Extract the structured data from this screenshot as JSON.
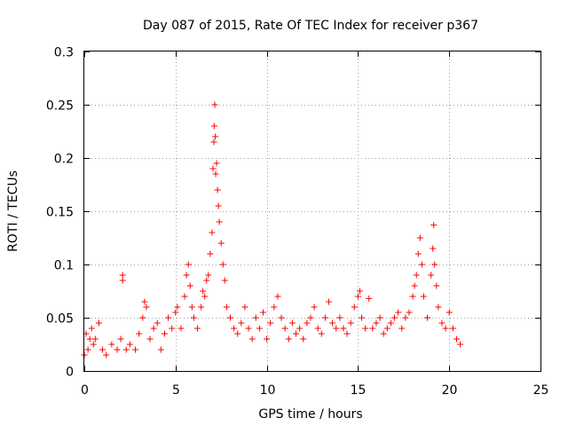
{
  "chart_data": {
    "type": "scatter",
    "title": "Day 087 of 2015, Rate Of TEC Index for receiver p367",
    "xlabel": "GPS time / hours",
    "ylabel": "ROTI / TECUs",
    "xlim": [
      0,
      25
    ],
    "ylim": [
      0,
      0.3
    ],
    "grid": true,
    "marker": "+",
    "color": "#ff0000",
    "x_ticks": [
      {
        "value": 0,
        "label": "0"
      },
      {
        "value": 5,
        "label": "5"
      },
      {
        "value": 10,
        "label": "10"
      },
      {
        "value": 15,
        "label": "15"
      },
      {
        "value": 20,
        "label": "20"
      },
      {
        "value": 25,
        "label": "25"
      }
    ],
    "y_ticks": [
      {
        "value": 0,
        "label": "0"
      },
      {
        "value": 0.05,
        "label": "0.05"
      },
      {
        "value": 0.1,
        "label": "0.1"
      },
      {
        "value": 0.15,
        "label": "0.15"
      },
      {
        "value": 0.2,
        "label": "0.2"
      },
      {
        "value": 0.25,
        "label": "0.25"
      },
      {
        "value": 0.3,
        "label": "0.3"
      }
    ],
    "series": [
      {
        "name": "ROTI",
        "points": [
          [
            0.0,
            0.015
          ],
          [
            0.1,
            0.035
          ],
          [
            0.2,
            0.02
          ],
          [
            0.3,
            0.03
          ],
          [
            0.4,
            0.04
          ],
          [
            0.5,
            0.025
          ],
          [
            0.6,
            0.03
          ],
          [
            0.8,
            0.045
          ],
          [
            1.0,
            0.02
          ],
          [
            1.2,
            0.015
          ],
          [
            1.5,
            0.025
          ],
          [
            1.8,
            0.02
          ],
          [
            2.0,
            0.03
          ],
          [
            2.1,
            0.09
          ],
          [
            2.1,
            0.085
          ],
          [
            2.3,
            0.02
          ],
          [
            2.5,
            0.025
          ],
          [
            2.8,
            0.02
          ],
          [
            3.0,
            0.035
          ],
          [
            3.2,
            0.05
          ],
          [
            3.3,
            0.065
          ],
          [
            3.4,
            0.06
          ],
          [
            3.6,
            0.03
          ],
          [
            3.8,
            0.04
          ],
          [
            4.0,
            0.045
          ],
          [
            4.2,
            0.02
          ],
          [
            4.4,
            0.035
          ],
          [
            4.6,
            0.05
          ],
          [
            4.8,
            0.04
          ],
          [
            5.0,
            0.055
          ],
          [
            5.1,
            0.06
          ],
          [
            5.3,
            0.04
          ],
          [
            5.5,
            0.07
          ],
          [
            5.6,
            0.09
          ],
          [
            5.7,
            0.1
          ],
          [
            5.8,
            0.08
          ],
          [
            5.9,
            0.06
          ],
          [
            6.0,
            0.05
          ],
          [
            6.2,
            0.04
          ],
          [
            6.4,
            0.06
          ],
          [
            6.5,
            0.075
          ],
          [
            6.6,
            0.07
          ],
          [
            6.7,
            0.085
          ],
          [
            6.8,
            0.09
          ],
          [
            6.9,
            0.11
          ],
          [
            7.0,
            0.13
          ],
          [
            7.05,
            0.19
          ],
          [
            7.1,
            0.215
          ],
          [
            7.12,
            0.23
          ],
          [
            7.15,
            0.25
          ],
          [
            7.18,
            0.22
          ],
          [
            7.2,
            0.185
          ],
          [
            7.25,
            0.195
          ],
          [
            7.3,
            0.17
          ],
          [
            7.35,
            0.155
          ],
          [
            7.4,
            0.14
          ],
          [
            7.5,
            0.12
          ],
          [
            7.6,
            0.1
          ],
          [
            7.7,
            0.085
          ],
          [
            7.8,
            0.06
          ],
          [
            8.0,
            0.05
          ],
          [
            8.2,
            0.04
          ],
          [
            8.4,
            0.035
          ],
          [
            8.6,
            0.045
          ],
          [
            8.8,
            0.06
          ],
          [
            9.0,
            0.04
          ],
          [
            9.2,
            0.03
          ],
          [
            9.4,
            0.05
          ],
          [
            9.6,
            0.04
          ],
          [
            9.8,
            0.055
          ],
          [
            10.0,
            0.03
          ],
          [
            10.2,
            0.045
          ],
          [
            10.4,
            0.06
          ],
          [
            10.6,
            0.07
          ],
          [
            10.8,
            0.05
          ],
          [
            11.0,
            0.04
          ],
          [
            11.2,
            0.03
          ],
          [
            11.4,
            0.045
          ],
          [
            11.6,
            0.035
          ],
          [
            11.8,
            0.04
          ],
          [
            12.0,
            0.03
          ],
          [
            12.2,
            0.045
          ],
          [
            12.4,
            0.05
          ],
          [
            12.6,
            0.06
          ],
          [
            12.8,
            0.04
          ],
          [
            13.0,
            0.035
          ],
          [
            13.2,
            0.05
          ],
          [
            13.4,
            0.065
          ],
          [
            13.6,
            0.045
          ],
          [
            13.8,
            0.04
          ],
          [
            14.0,
            0.05
          ],
          [
            14.2,
            0.04
          ],
          [
            14.4,
            0.035
          ],
          [
            14.6,
            0.045
          ],
          [
            14.8,
            0.06
          ],
          [
            15.0,
            0.07
          ],
          [
            15.1,
            0.075
          ],
          [
            15.2,
            0.05
          ],
          [
            15.4,
            0.04
          ],
          [
            15.6,
            0.068
          ],
          [
            15.8,
            0.04
          ],
          [
            16.0,
            0.045
          ],
          [
            16.2,
            0.05
          ],
          [
            16.4,
            0.035
          ],
          [
            16.6,
            0.04
          ],
          [
            16.8,
            0.045
          ],
          [
            17.0,
            0.05
          ],
          [
            17.2,
            0.055
          ],
          [
            17.4,
            0.04
          ],
          [
            17.6,
            0.05
          ],
          [
            17.8,
            0.055
          ],
          [
            18.0,
            0.07
          ],
          [
            18.1,
            0.08
          ],
          [
            18.2,
            0.09
          ],
          [
            18.3,
            0.11
          ],
          [
            18.4,
            0.125
          ],
          [
            18.5,
            0.1
          ],
          [
            18.6,
            0.07
          ],
          [
            18.8,
            0.05
          ],
          [
            19.0,
            0.09
          ],
          [
            19.1,
            0.115
          ],
          [
            19.15,
            0.137
          ],
          [
            19.2,
            0.1
          ],
          [
            19.3,
            0.08
          ],
          [
            19.4,
            0.06
          ],
          [
            19.6,
            0.045
          ],
          [
            19.8,
            0.04
          ],
          [
            20.0,
            0.055
          ],
          [
            20.2,
            0.04
          ],
          [
            20.4,
            0.03
          ],
          [
            20.6,
            0.025
          ]
        ]
      }
    ]
  }
}
